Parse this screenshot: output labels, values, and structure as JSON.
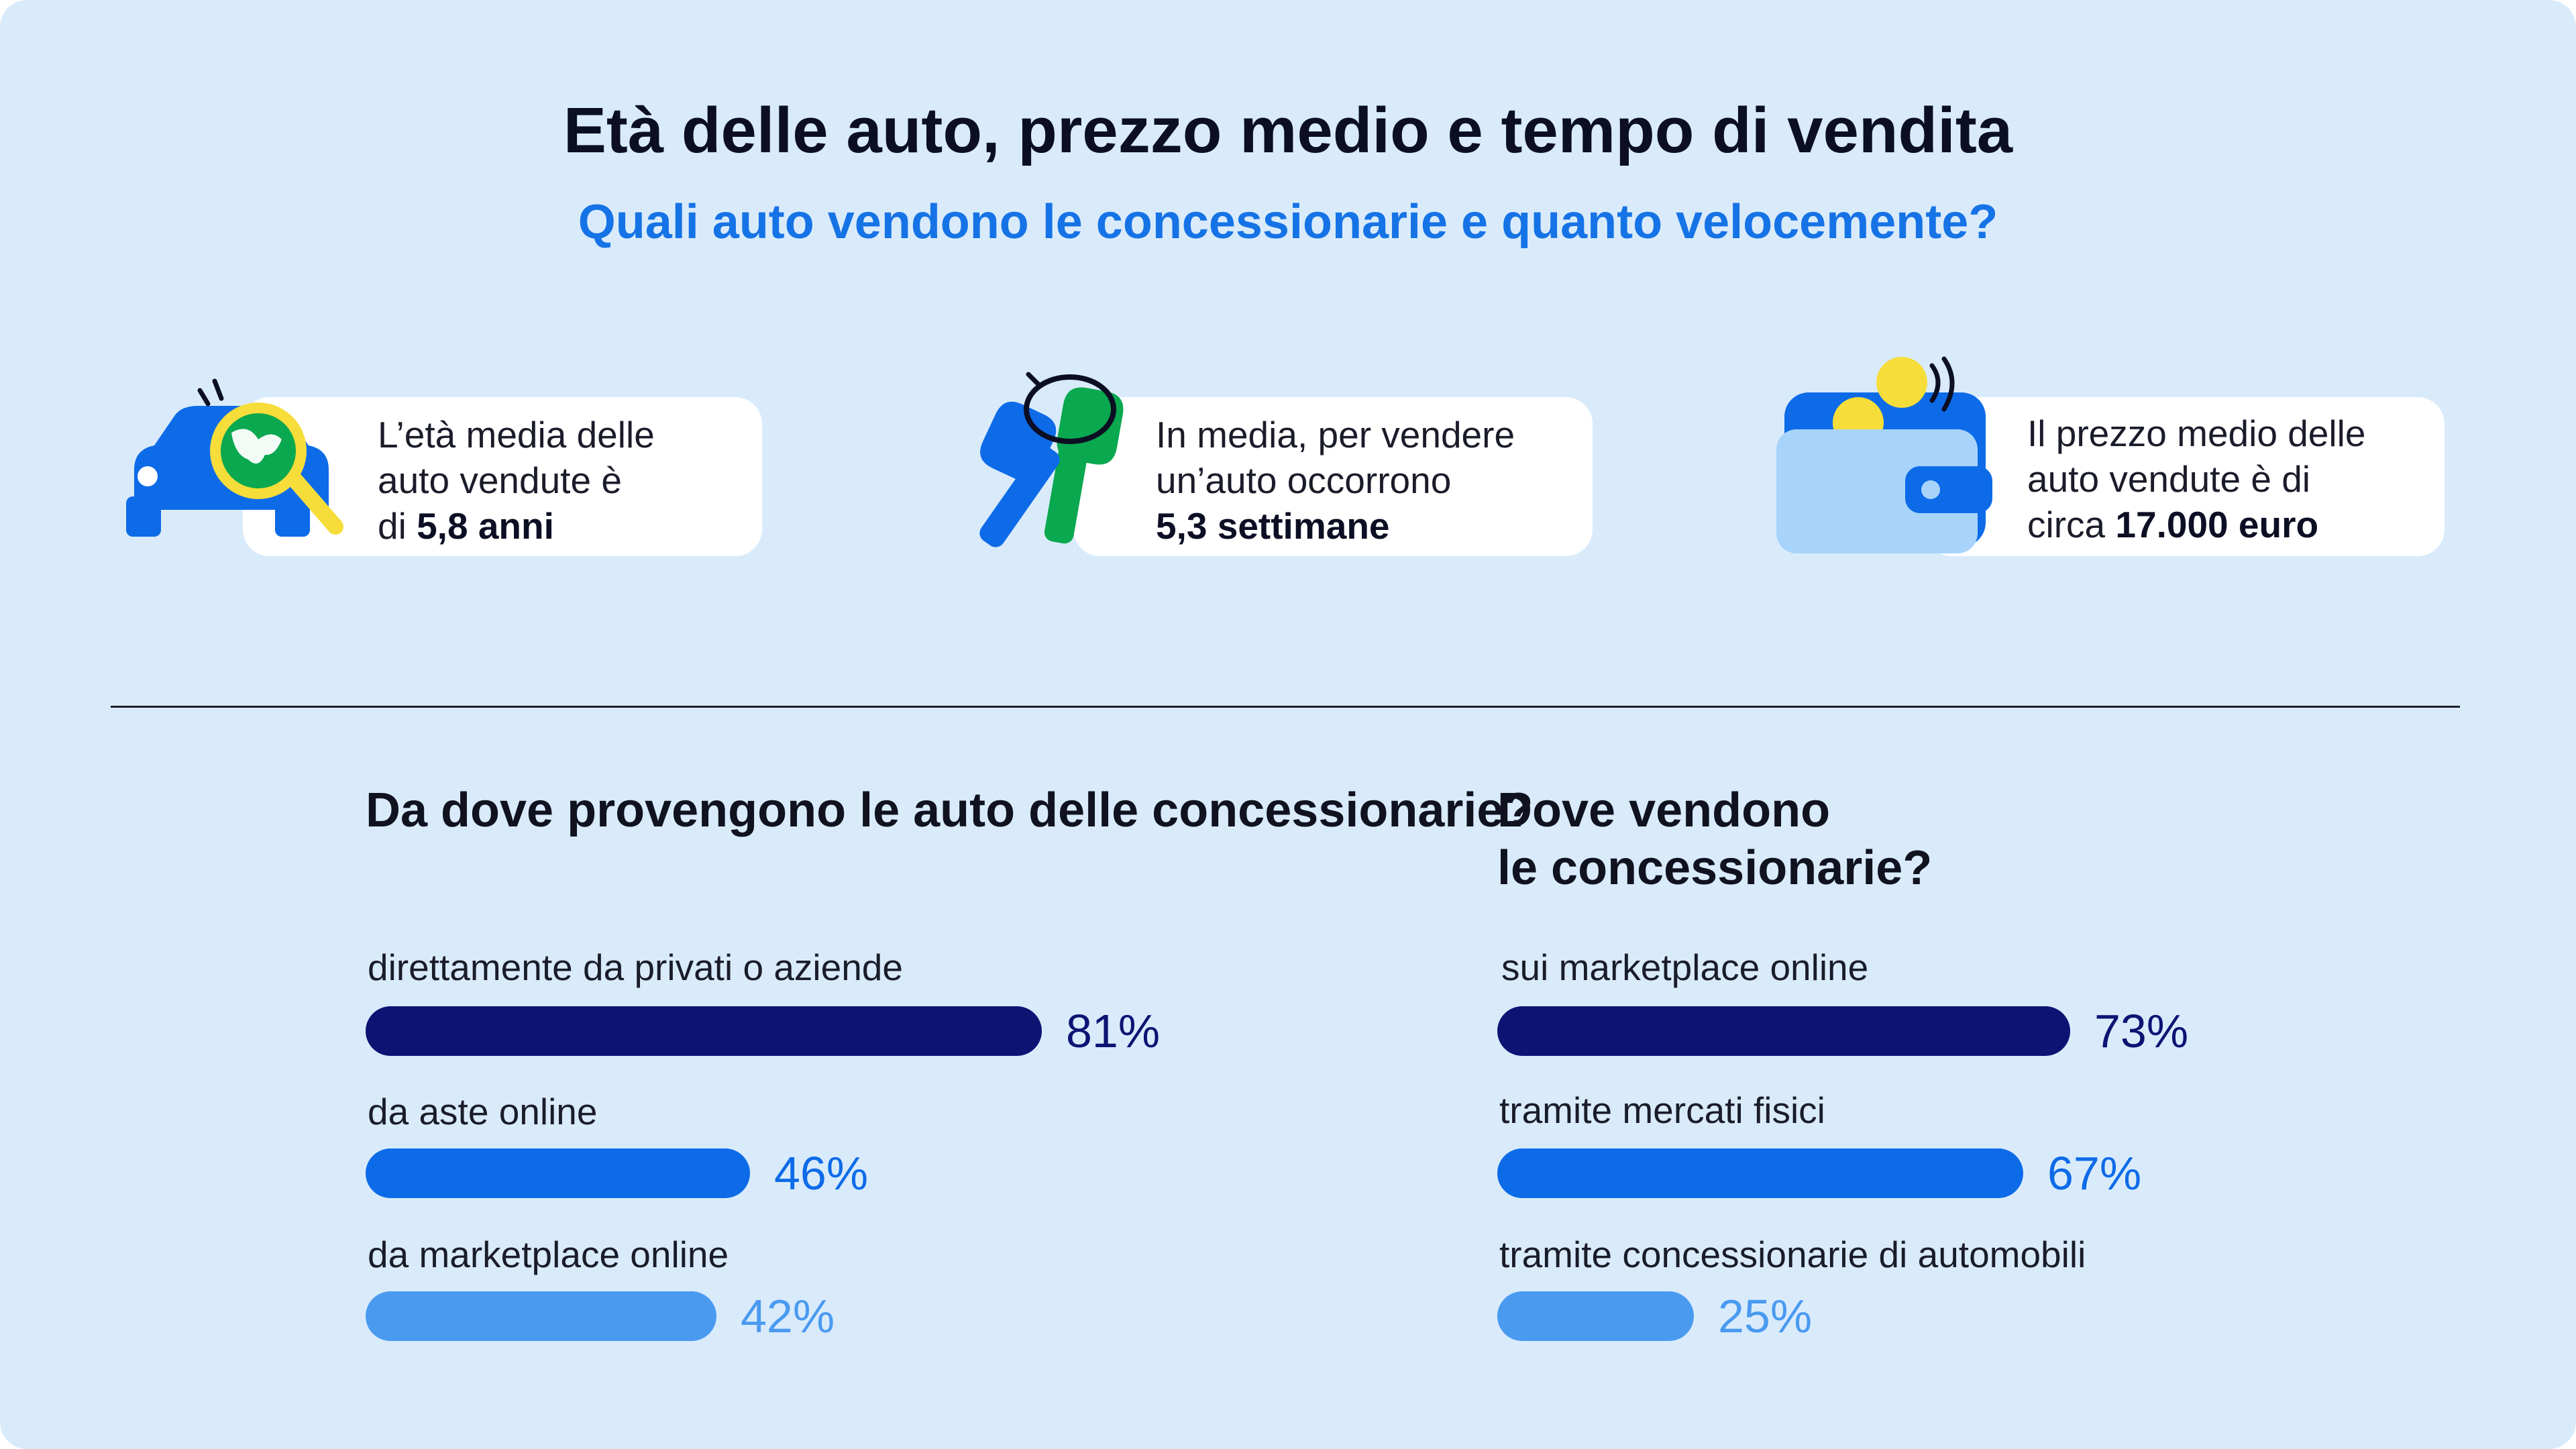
{
  "title": "Età delle auto, prezzo medio e tempo di vendita",
  "subtitle": "Quali auto vendono le concessionarie e quanto velocemente?",
  "stats": [
    {
      "line1": "L’età media delle",
      "line2": "auto vendute è",
      "line3_prefix": "di ",
      "highlight": "5,8 anni",
      "icon": "car-magnifier-icon"
    },
    {
      "line1": "In media, per vendere",
      "line2": "un’auto occorrono",
      "line3_prefix": "",
      "highlight": "5,3 settimane",
      "icon": "car-keys-icon"
    },
    {
      "line1": "Il prezzo medio delle",
      "line2": "auto vendute è di",
      "line3_prefix": "circa ",
      "highlight": "17.000 euro",
      "icon": "wallet-coins-icon"
    }
  ],
  "colors": {
    "background": "#d9ebfb",
    "dark_blue": "#0b1473",
    "mid_blue": "#0d6be8",
    "light_blue": "#4a9af0",
    "subtitle_blue": "#1673e6"
  },
  "chart_data": [
    {
      "type": "bar",
      "title": "Da dove provengono le auto delle concessionarie?",
      "categories": [
        "direttamente da privati o aziende",
        "da aste online",
        "da marketplace online"
      ],
      "values": [
        81,
        46,
        42
      ],
      "value_labels": [
        "81%",
        "46%",
        "42%"
      ],
      "unit": "%",
      "ylim": [
        0,
        100
      ]
    },
    {
      "type": "bar",
      "title": "Dove vendono le concessionarie?",
      "title_lines": [
        "Dove vendono",
        "le concessionarie?"
      ],
      "categories": [
        "sui marketplace online",
        "tramite mercati fisici",
        "tramite concessionarie di automobili"
      ],
      "values": [
        73,
        67,
        25
      ],
      "value_labels": [
        "73%",
        "67%",
        "25%"
      ],
      "unit": "%",
      "ylim": [
        0,
        100
      ]
    }
  ]
}
